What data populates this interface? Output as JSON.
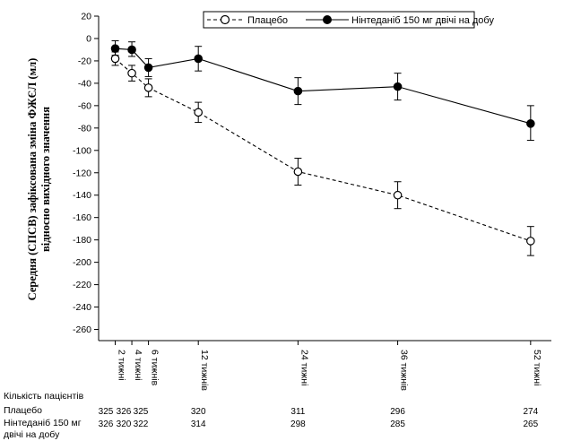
{
  "chart_data": {
    "type": "line",
    "title": "",
    "ylabel_line1": "Середня (СПСВ) зафіксована зміна ФЖЄЛ (мл)",
    "ylabel_line2": "відносно вихідного значення",
    "xlabel": "",
    "ylim": [
      -270,
      20
    ],
    "yticks": [
      20,
      0,
      -20,
      -40,
      -60,
      -80,
      -100,
      -120,
      -140,
      -160,
      -180,
      -200,
      -220,
      -240,
      -260
    ],
    "x": [
      2,
      4,
      6,
      12,
      24,
      36,
      52
    ],
    "xlabels": [
      "2 тижні",
      "4 тижні",
      "6 тижнів",
      "12 тижнів",
      "24 тижні",
      "36 тижнів",
      "52 тижні"
    ],
    "grid": false,
    "legend_position": "top",
    "series": [
      {
        "name": "Плацебо",
        "style": "dashed",
        "marker": "open-circle",
        "color": "#000000",
        "values": [
          -18,
          -31,
          -44,
          -66,
          -119,
          -140,
          -181
        ],
        "err_low": [
          -24,
          -38,
          -52,
          -75,
          -131,
          -152,
          -194
        ],
        "err_high": [
          -12,
          -24,
          -36,
          -57,
          -107,
          -128,
          -168
        ]
      },
      {
        "name": "Нінтеданіб 150 мг двічі на добу",
        "style": "solid",
        "marker": "filled-circle",
        "color": "#000000",
        "values": [
          -9,
          -10,
          -26,
          -18,
          -47,
          -43,
          -76
        ],
        "err_low": [
          -15,
          -16,
          -34,
          -29,
          -59,
          -55,
          -91
        ],
        "err_high": [
          -2,
          -3,
          -18,
          -7,
          -35,
          -31,
          -60
        ]
      }
    ]
  },
  "risk_table": {
    "header": "Кількість пацієнтів",
    "rows": [
      {
        "label": "Плацебо",
        "values": [
          "325",
          "326",
          "325",
          "320",
          "311",
          "296",
          "274"
        ]
      },
      {
        "label_line1": "Нінтеданіб 150 мг",
        "label_line2": "двічі на добу",
        "values": [
          "326",
          "320",
          "322",
          "314",
          "298",
          "285",
          "265"
        ]
      }
    ]
  }
}
